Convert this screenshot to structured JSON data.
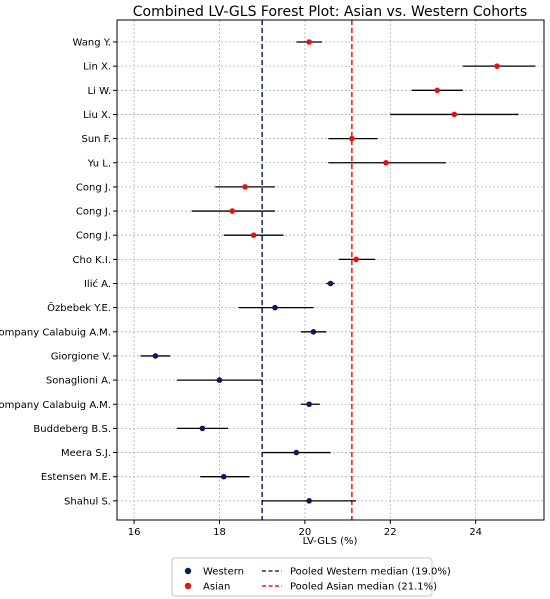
{
  "chart_data": {
    "type": "scatter",
    "title": "Combined LV-GLS Forest Plot: Asian vs. Western Cohorts",
    "xlabel": "LV-GLS (%)",
    "ylabel": "",
    "xlim": [
      15.6,
      25.6
    ],
    "xticks": [
      16,
      18,
      20,
      22,
      24
    ],
    "grid": true,
    "legend_position": "bottom-center",
    "colors": {
      "Western": "#0b1a5e",
      "Asian": "#e5120f",
      "western_median_line": "#1f2f7a",
      "asian_median_line": "#e32020",
      "grid": "#b0b0b0",
      "ci_line": "#000000"
    },
    "studies": [
      {
        "label": "Wang Y.",
        "cohort": "Asian",
        "estimate": 20.1,
        "ci_low": 19.8,
        "ci_high": 20.4
      },
      {
        "label": "Lin X.",
        "cohort": "Asian",
        "estimate": 24.5,
        "ci_low": 23.7,
        "ci_high": 25.4
      },
      {
        "label": "Li W.",
        "cohort": "Asian",
        "estimate": 23.1,
        "ci_low": 22.5,
        "ci_high": 23.7
      },
      {
        "label": "Liu X.",
        "cohort": "Asian",
        "estimate": 23.5,
        "ci_low": 22.0,
        "ci_high": 25.0
      },
      {
        "label": "Sun F.",
        "cohort": "Asian",
        "estimate": 21.1,
        "ci_low": 20.55,
        "ci_high": 21.7
      },
      {
        "label": "Yu L.",
        "cohort": "Asian",
        "estimate": 21.9,
        "ci_low": 20.55,
        "ci_high": 23.3
      },
      {
        "label": "Cong J.",
        "cohort": "Asian",
        "estimate": 18.6,
        "ci_low": 17.9,
        "ci_high": 19.3
      },
      {
        "label": "Cong J.",
        "cohort": "Asian",
        "estimate": 18.3,
        "ci_low": 17.35,
        "ci_high": 19.3
      },
      {
        "label": "Cong J.",
        "cohort": "Asian",
        "estimate": 18.8,
        "ci_low": 18.1,
        "ci_high": 19.5
      },
      {
        "label": "Cho K.I.",
        "cohort": "Asian",
        "estimate": 21.2,
        "ci_low": 20.8,
        "ci_high": 21.65
      },
      {
        "label": "Ilić A.",
        "cohort": "Western",
        "estimate": 20.6,
        "ci_low": 20.5,
        "ci_high": 20.7
      },
      {
        "label": "Özbebek Y.E.",
        "cohort": "Western",
        "estimate": 19.3,
        "ci_low": 18.45,
        "ci_high": 20.2
      },
      {
        "label": "Company Calabuig A.M.",
        "cohort": "Western",
        "estimate": 20.2,
        "ci_low": 19.9,
        "ci_high": 20.5
      },
      {
        "label": "Giorgione V.",
        "cohort": "Western",
        "estimate": 16.5,
        "ci_low": 16.15,
        "ci_high": 16.85
      },
      {
        "label": "Sonaglioni A.",
        "cohort": "Western",
        "estimate": 18.0,
        "ci_low": 17.0,
        "ci_high": 19.0
      },
      {
        "label": "Company Calabuig A.M.",
        "cohort": "Western",
        "estimate": 20.1,
        "ci_low": 19.9,
        "ci_high": 20.35
      },
      {
        "label": "Buddeberg B.S.",
        "cohort": "Western",
        "estimate": 17.6,
        "ci_low": 17.0,
        "ci_high": 18.2
      },
      {
        "label": "Meera S.J.",
        "cohort": "Western",
        "estimate": 19.8,
        "ci_low": 19.0,
        "ci_high": 20.6
      },
      {
        "label": "Estensen M.E.",
        "cohort": "Western",
        "estimate": 18.1,
        "ci_low": 17.55,
        "ci_high": 18.7
      },
      {
        "label": "Shahul S.",
        "cohort": "Western",
        "estimate": 20.1,
        "ci_low": 19.0,
        "ci_high": 21.2
      }
    ],
    "reference_lines": [
      {
        "name": "Pooled Western median (19.0%)",
        "value": 19.0,
        "style": "dashed",
        "color": "#1f2f7a"
      },
      {
        "name": "Pooled Asian median (21.1%)",
        "value": 21.1,
        "style": "dashed",
        "color": "#e32020"
      }
    ],
    "legend": [
      {
        "label": "Western",
        "kind": "marker",
        "color": "#0b1a5e"
      },
      {
        "label": "Asian",
        "kind": "marker",
        "color": "#e5120f"
      },
      {
        "label": "Pooled Western median (19.0%)",
        "kind": "dashed-line",
        "color": "#1f2f7a"
      },
      {
        "label": "Pooled Asian median (21.1%)",
        "kind": "dashed-line",
        "color": "#e32020"
      }
    ]
  }
}
